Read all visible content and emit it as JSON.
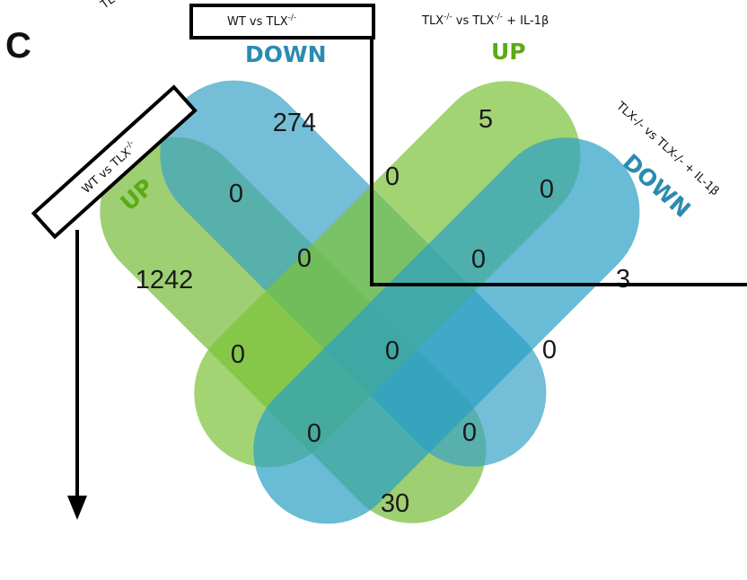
{
  "panel_label": "C",
  "cropped_top_text": "TL",
  "sets": {
    "set1": {
      "comparison": "WT vs TLX",
      "sup": "-/-",
      "direction": "UP",
      "color": "#78bc3c"
    },
    "set2": {
      "comparison": "WT vs TLX",
      "sup": "-/-",
      "direction": "DOWN",
      "color": "#3aa3c6"
    },
    "set3": {
      "comparison_a": "TLX",
      "sup_a": "-/-",
      "mid": " vs TLX",
      "sup_b": "-/-",
      "tail": " + IL-1β",
      "direction": "UP",
      "color": "#7cc238"
    },
    "set4": {
      "comparison": "TLX-/- vs TLX-/- + IL-1β",
      "direction": "DOWN",
      "color": "#2aa0c4"
    }
  },
  "regions": {
    "only_set1": "1242",
    "only_set2": "274",
    "only_set3": "5",
    "only_set4": "3",
    "set1_set2": "0",
    "set2_set3": "0",
    "set3_set4": "0",
    "set1_set3_set2": "0",
    "set2_set3_set4": "0",
    "set1_set3": "0",
    "all_four": "0",
    "set2_set4": "0",
    "set1_set2_set4": "0",
    "set1_set3_set4": "0",
    "set1_set4": "30"
  },
  "colors": {
    "up_text": "#5aab14",
    "down_text": "#2b8bb0"
  }
}
